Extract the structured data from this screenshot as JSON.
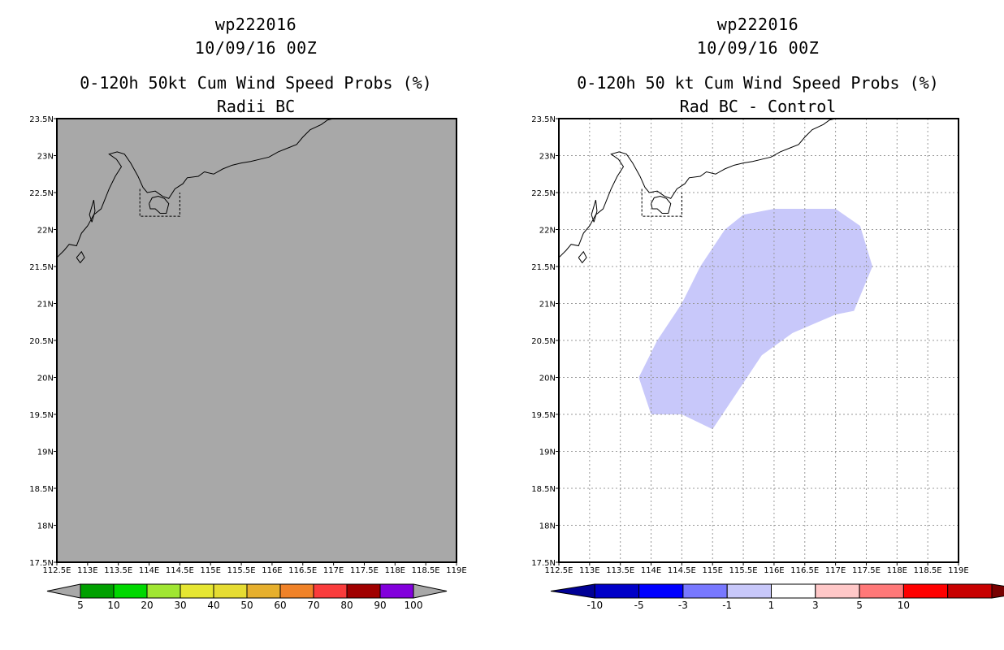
{
  "left_panel": {
    "title_line1": "wp222016",
    "title_line2": "10/09/16 00Z",
    "title_line3": "0-120h 50kt Cum Wind Speed Probs (%)",
    "title_line4": "Radii BC",
    "field_color": "#a8a8a8",
    "colorbar": {
      "colors": [
        "#a8a8a8",
        "#00a000",
        "#00d800",
        "#a0e632",
        "#e6e632",
        "#e6dc32",
        "#e6af2d",
        "#f08228",
        "#fa3c3c",
        "#a00000",
        "#8200dc",
        "#a8a8a8"
      ],
      "labels": [
        "5",
        "10",
        "20",
        "30",
        "40",
        "50",
        "60",
        "70",
        "80",
        "90",
        "100"
      ]
    }
  },
  "right_panel": {
    "title_line1": "wp222016",
    "title_line2": "10/09/16 00Z",
    "title_line3": "0-120h 50 kt Cum Wind Speed Probs (%)",
    "title_line4": "Rad BC - Control",
    "shaded_region_color": "#c8c8fa",
    "shaded_region_polygon_lonlat": [
      [
        113.8,
        20.0
      ],
      [
        114.1,
        20.5
      ],
      [
        114.5,
        21.0
      ],
      [
        114.8,
        21.5
      ],
      [
        115.2,
        22.0
      ],
      [
        115.5,
        22.2
      ],
      [
        116.0,
        22.28
      ],
      [
        117.0,
        22.28
      ],
      [
        117.4,
        22.05
      ],
      [
        117.6,
        21.5
      ],
      [
        117.3,
        20.9
      ],
      [
        117.0,
        20.85
      ],
      [
        116.3,
        20.6
      ],
      [
        115.8,
        20.3
      ],
      [
        115.4,
        19.8
      ],
      [
        115.0,
        19.3
      ],
      [
        114.5,
        19.5
      ],
      [
        114.0,
        19.5
      ]
    ],
    "colorbar": {
      "colors": [
        "#000096",
        "#0000c8",
        "#0000ff",
        "#7878ff",
        "#c8c8fa",
        "#ffffff",
        "#ffc8c8",
        "#ff7878",
        "#ff0000",
        "#c80000",
        "#780000"
      ],
      "labels": [
        "-10",
        "-5",
        "-3",
        "-1",
        "1",
        "3",
        "5",
        "10"
      ]
    }
  },
  "map_extent": {
    "lon_min": 112.5,
    "lon_max": 119.0,
    "lat_min": 17.5,
    "lat_max": 23.5
  },
  "lon_ticks": [
    "112.5E",
    "113E",
    "113.5E",
    "114E",
    "114.5E",
    "115E",
    "115.5E",
    "116E",
    "116.5E",
    "117E",
    "117.5E",
    "118E",
    "118.5E",
    "119E"
  ],
  "lat_ticks": [
    "17.5N",
    "18N",
    "18.5N",
    "19N",
    "19.5N",
    "20N",
    "20.5N",
    "21N",
    "21.5N",
    "22N",
    "22.5N",
    "23N",
    "23.5N"
  ]
}
